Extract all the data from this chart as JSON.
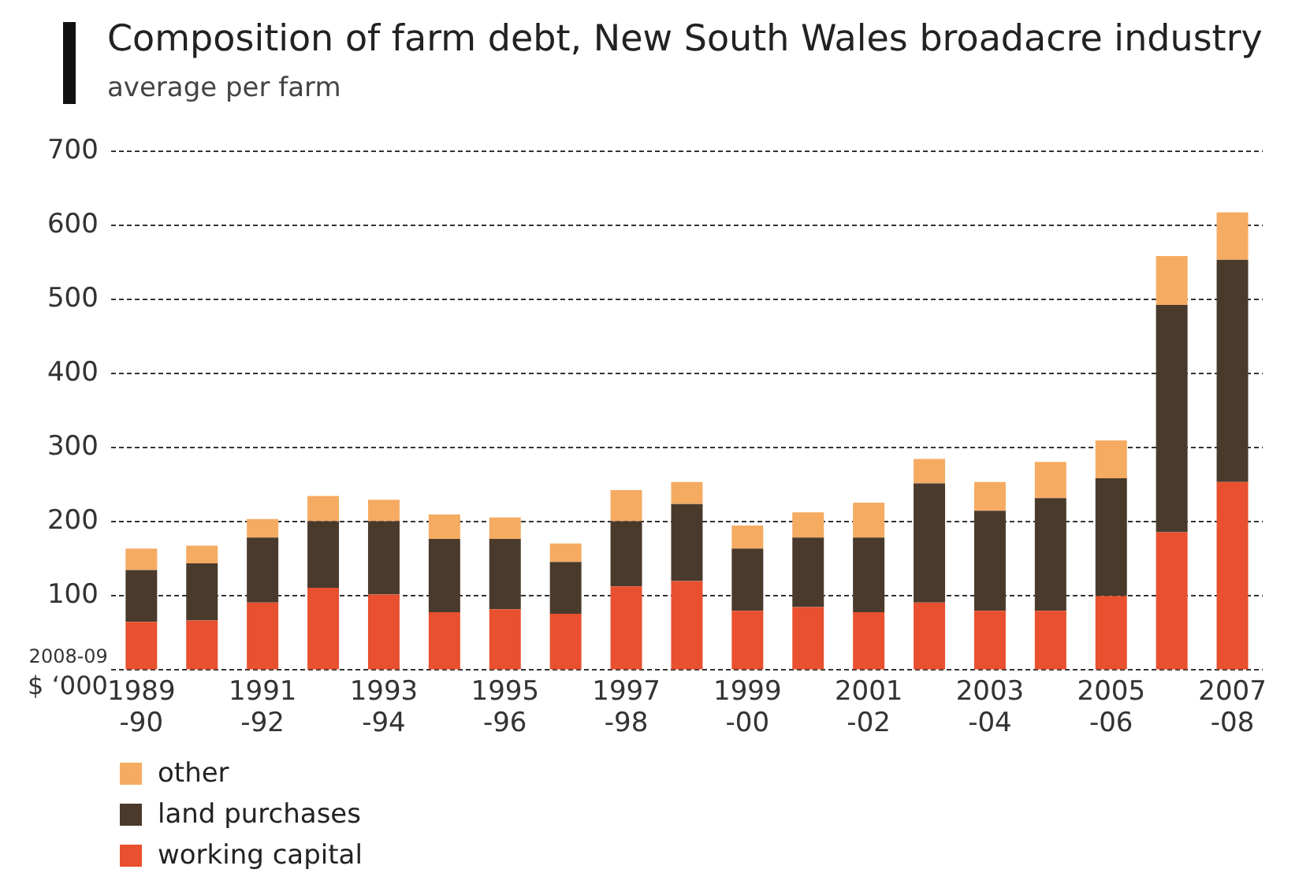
{
  "chart_data": {
    "type": "bar",
    "title": "Composition of farm debt, New South Wales broadacre industry",
    "subtitle": "average per farm",
    "ylabel": "2008-09 $ ‘000",
    "categories": [
      "1989-90",
      null,
      "1991-92",
      null,
      "1993-94",
      null,
      "1995-96",
      null,
      "1997-98",
      null,
      "1999-00",
      null,
      "2001-02",
      null,
      "2003-04",
      null,
      "2005-06",
      null,
      "2007-08"
    ],
    "stacked": true,
    "grid": "y",
    "legend": "bottom left",
    "ylim": [
      0,
      700
    ],
    "yticks": [
      {
        "value": 0,
        "label": null
      },
      100,
      200,
      300,
      400,
      500,
      600,
      700
    ],
    "series": [
      {
        "name": "working capital",
        "color": "#e8502f",
        "values": [
          65,
          67,
          91,
          111,
          102,
          78,
          82,
          76,
          113,
          120,
          80,
          85,
          78,
          91,
          80,
          80,
          100,
          186,
          254
        ]
      },
      {
        "name": "land purchases",
        "color": "#4a3a2c",
        "values": [
          70,
          77,
          88,
          90,
          99,
          99,
          95,
          70,
          88,
          104,
          84,
          94,
          101,
          161,
          135,
          152,
          159,
          307,
          300
        ]
      },
      {
        "name": "other",
        "color": "#f5ab62",
        "values": [
          29,
          24,
          25,
          34,
          29,
          33,
          29,
          25,
          42,
          30,
          31,
          34,
          47,
          33,
          39,
          49,
          51,
          66,
          64
        ]
      }
    ]
  }
}
